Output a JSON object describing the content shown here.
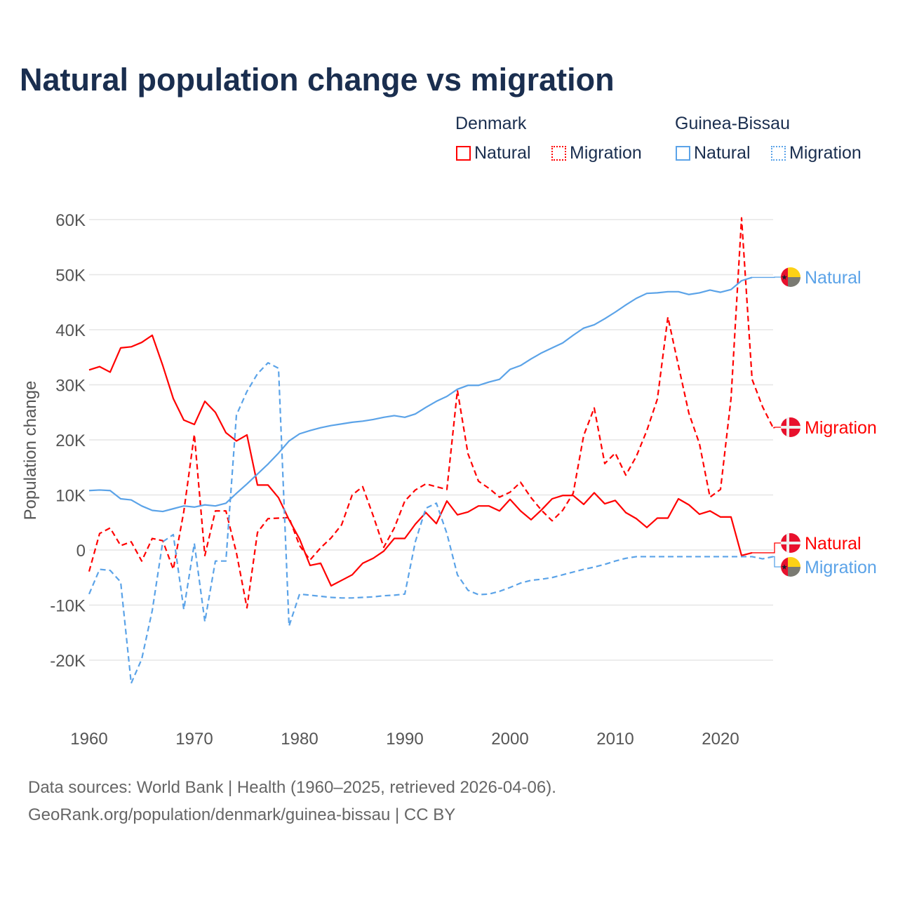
{
  "chart_data": {
    "type": "line",
    "title": "Natural population change vs migration",
    "xlabel": "",
    "ylabel": "Population change",
    "xlim": [
      1960,
      2025
    ],
    "ylim": [
      -20000,
      60000
    ],
    "x_ticks": [
      1960,
      1970,
      1980,
      1990,
      2000,
      2010,
      2020
    ],
    "x_tick_labels": [
      "1960",
      "1970",
      "1980",
      "1990",
      "2000",
      "2010",
      "2020"
    ],
    "y_ticks": [
      60000,
      50000,
      40000,
      30000,
      20000,
      10000,
      0,
      -10000,
      -20000
    ],
    "y_tick_labels": [
      "60K",
      "50K",
      "40K",
      "30K",
      "20K",
      "10K",
      "0",
      "-10K",
      "-20K"
    ],
    "grid": true,
    "legend_placement": "top-right",
    "legend_groups": [
      "Denmark",
      "Guinea-Bissau"
    ],
    "series": [
      {
        "name": "Natural",
        "country": "Denmark",
        "color": "#ff0000",
        "dash": "solid",
        "start_year": 1960,
        "end_label": "Natural",
        "values": [
          32700,
          33300,
          32300,
          36700,
          36900,
          37700,
          39000,
          33500,
          27500,
          23600,
          22800,
          27000,
          25000,
          21300,
          19800,
          20900,
          11800,
          11800,
          9500,
          5500,
          2000,
          -2800,
          -2400,
          -6500,
          -5500,
          -4500,
          -2400,
          -1500,
          -200,
          2100,
          2100,
          4700,
          6800,
          4800,
          8900,
          6400,
          6900,
          8000,
          8000,
          7100,
          9200,
          7100,
          5500,
          7300,
          9300,
          9900,
          9900,
          8300,
          10400,
          8400,
          9000,
          6800,
          5700,
          4100,
          5800,
          5800,
          9300,
          8200,
          6500,
          7100,
          6000,
          6000,
          -1000,
          -500
        ]
      },
      {
        "name": "Migration",
        "country": "Denmark",
        "color": "#ff0000",
        "dash": "dashed",
        "start_year": 1960,
        "end_label": "Migration",
        "values": [
          -3900,
          3000,
          4000,
          800,
          1500,
          -2000,
          2100,
          1700,
          -3500,
          7000,
          21000,
          -1000,
          7100,
          7100,
          -500,
          -10500,
          3200,
          5700,
          5800,
          5900,
          800,
          -1800,
          400,
          2200,
          4600,
          10000,
          11500,
          6200,
          500,
          4000,
          8900,
          10900,
          12000,
          11500,
          11000,
          29000,
          17500,
          12500,
          11200,
          9600,
          10500,
          12300,
          9500,
          7200,
          5300,
          7200,
          10300,
          20800,
          25800,
          15700,
          17600,
          13600,
          17000,
          21700,
          27400,
          42300,
          33500,
          24800,
          19300,
          9600,
          11000,
          27500,
          60300,
          31000,
          26000,
          22200
        ]
      },
      {
        "name": "Natural",
        "country": "Guinea-Bissau",
        "color": "#5ba3e8",
        "dash": "solid",
        "start_year": 1960,
        "end_label": "Natural",
        "values": [
          10800,
          10900,
          10800,
          9300,
          9100,
          8000,
          7200,
          7000,
          7500,
          8000,
          7800,
          8200,
          8000,
          8500,
          10300,
          12000,
          13800,
          15600,
          17600,
          19800,
          21100,
          21700,
          22200,
          22600,
          22900,
          23200,
          23400,
          23700,
          24100,
          24400,
          24100,
          24700,
          25900,
          27000,
          27900,
          29200,
          29900,
          29900,
          30500,
          31000,
          32800,
          33500,
          34700,
          35800,
          36700,
          37600,
          39000,
          40300,
          40900,
          42000,
          43200,
          44500,
          45700,
          46600,
          46700,
          46900,
          46900,
          46400,
          46700,
          47200,
          46800,
          47300,
          48900,
          49500
        ]
      },
      {
        "name": "Migration",
        "country": "Guinea-Bissau",
        "color": "#5ba3e8",
        "dash": "dashed",
        "start_year": 1960,
        "end_label": "Migration",
        "values": [
          -8000,
          -3500,
          -3700,
          -5800,
          -24200,
          -19800,
          -11000,
          1500,
          2800,
          -10800,
          1200,
          -13000,
          -2000,
          -2000,
          24500,
          28800,
          32000,
          34000,
          33000,
          -13800,
          -8000,
          -8200,
          -8400,
          -8600,
          -8700,
          -8700,
          -8600,
          -8500,
          -8300,
          -8200,
          -8000,
          1500,
          7600,
          8500,
          3000,
          -4500,
          -7300,
          -8100,
          -8000,
          -7500,
          -6800,
          -6000,
          -5500,
          -5300,
          -5000,
          -4500,
          -4000,
          -3500,
          -3100,
          -2600,
          -2000,
          -1500,
          -1200,
          -1200,
          -1200,
          -1200,
          -1200,
          -1200,
          -1200,
          -1200,
          -1200,
          -1200,
          -1200,
          -1200,
          -1600,
          -1200
        ]
      }
    ]
  },
  "legend": {
    "denmark": "Denmark",
    "guinea_bissau": "Guinea-Bissau",
    "natural": "Natural",
    "migration": "Migration"
  },
  "footer": {
    "line1": "Data sources: World Bank | Health (1960–2025, retrieved 2026-04-06).",
    "line2": "GeoRank.org/population/denmark/guinea-bissau | CC BY"
  }
}
